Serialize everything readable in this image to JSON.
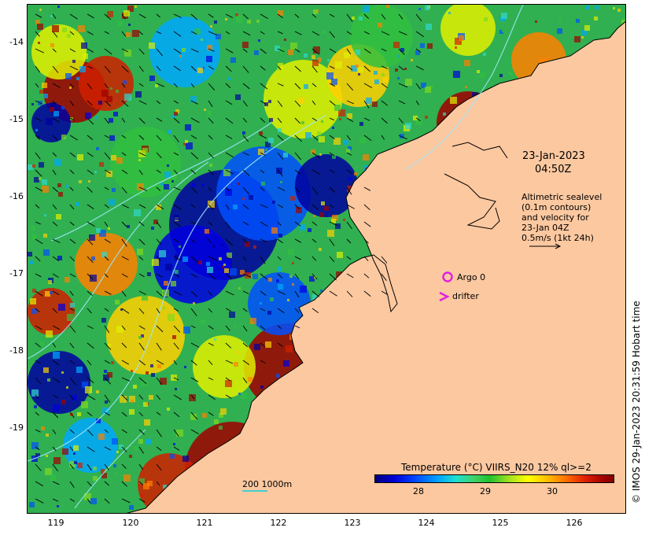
{
  "map": {
    "y_ticks": [
      "-14",
      "-15",
      "-16",
      "-17",
      "-18",
      "-19"
    ],
    "x_ticks": [
      "119",
      "120",
      "121",
      "122",
      "123",
      "124",
      "125",
      "126"
    ],
    "lat_range": [
      -20.1,
      -13.5
    ],
    "lon_range": [
      118.6,
      126.7
    ]
  },
  "annotations": {
    "date": "23-Jan-2023",
    "time": "04:50Z",
    "altimetry_lines": [
      "Altimetric sealevel",
      "(0.1m contours)",
      "and velocity for",
      "23-Jan 04Z",
      "0.5m/s (1kt 24h)"
    ],
    "argo_label": "Argo 0",
    "drifter_label": "drifter",
    "scale_label": "200  1000m"
  },
  "colorbar": {
    "title": "Temperature (°C) VIIRS_N20 12% ql>=2",
    "ticks": [
      "28",
      "29",
      "30"
    ]
  },
  "credit": "© IMOS 29-Jan-2023 20:31:59 Hobart time",
  "colors": {
    "land": "#fcc8a0",
    "warm": "#a00000",
    "cold": "#0000c0",
    "argo": "#e020e0",
    "contour": "#a0e8ff"
  }
}
